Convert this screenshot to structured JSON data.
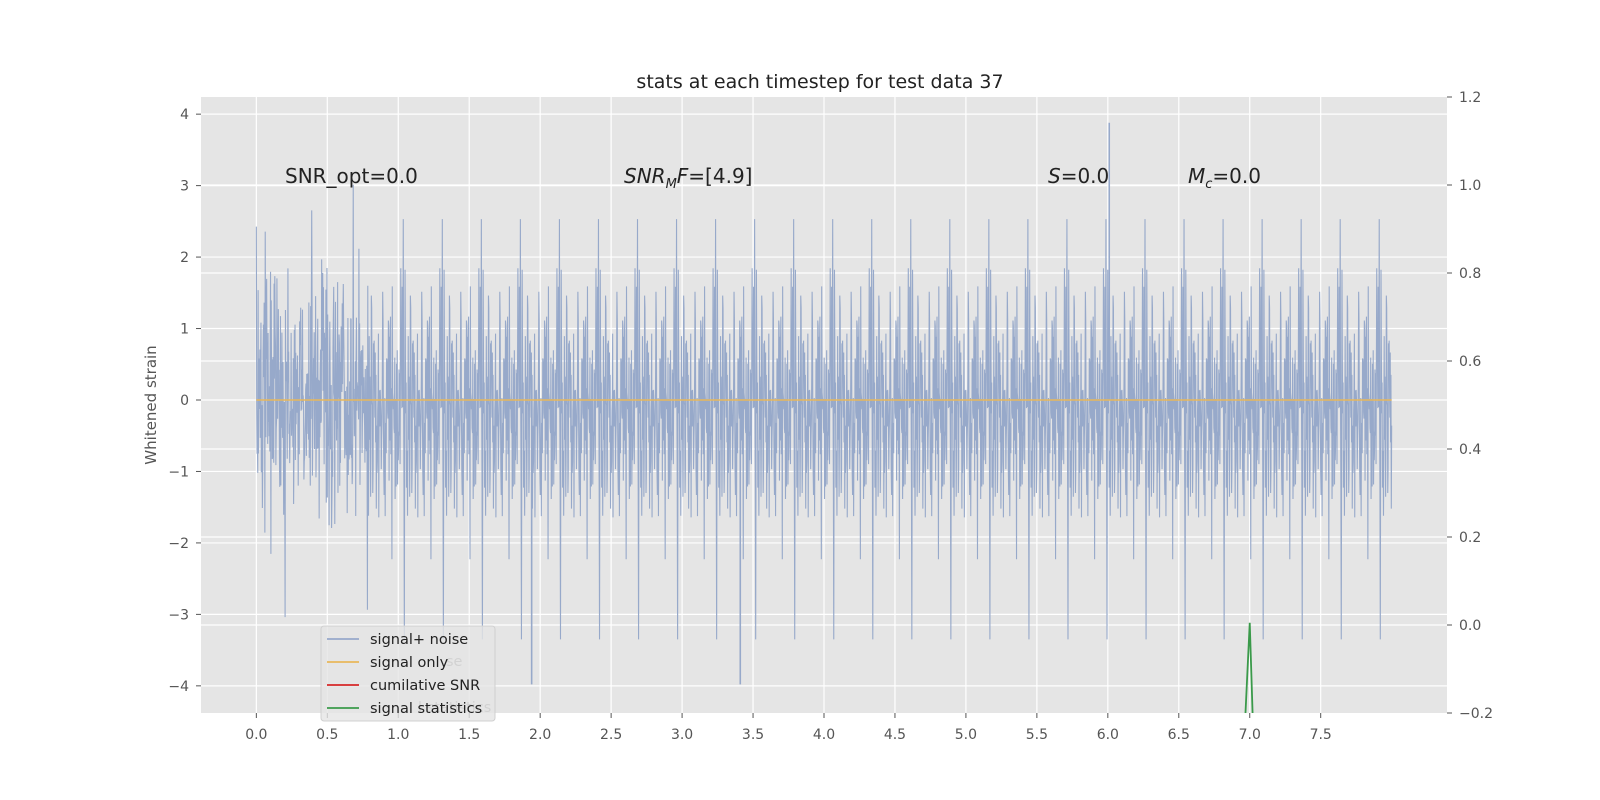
{
  "chart_data": {
    "type": "line",
    "title": "stats at each timestep for test data 37",
    "ylabel": "Whitened strain",
    "xlim": [
      -0.39,
      8.39
    ],
    "ylim": [
      -4.38,
      4.24
    ],
    "ylim_right": [
      -0.2,
      1.2
    ],
    "xticks": [
      "0.0",
      "0.5",
      "1.0",
      "1.5",
      "2.0",
      "2.5",
      "3.0",
      "3.5",
      "4.0",
      "4.5",
      "5.0",
      "5.5",
      "6.0",
      "6.5",
      "7.0",
      "7.5"
    ],
    "yticks": [
      "4",
      "3",
      "2",
      "1",
      "0",
      "−1",
      "−2",
      "−3",
      "−4"
    ],
    "yticks_right": [
      "1.2",
      "1.0",
      "0.8",
      "0.6",
      "0.4",
      "0.2",
      "0.0",
      "−0.2"
    ],
    "grid": true,
    "legend_position": "lower-left",
    "series": [
      {
        "name": "signal+ noise",
        "color": "#97a9ca",
        "x_range": [
          0.0,
          8.0
        ],
        "amplitude_std": 0.95,
        "kind": "noise"
      },
      {
        "name": "signal only",
        "color": "#e8b75a",
        "x": [
          0.0,
          8.0
        ],
        "y": [
          0.0,
          0.0
        ]
      },
      {
        "name": "cumilative SNR",
        "color": "#d62728",
        "x": [],
        "y": []
      },
      {
        "name": "signal statistics",
        "color": "#3a9a4a",
        "axis": "right",
        "x": [
          6.97,
          7.0,
          7.02
        ],
        "y": [
          -0.2,
          0.005,
          -0.2
        ]
      }
    ],
    "ghost_legend": [
      "se",
      "l statistics"
    ],
    "annotations": [
      {
        "id": "snr-opt",
        "text": "SNR_opt=0.0",
        "x": 0.2,
        "y": 3.05
      },
      {
        "id": "snr-mf",
        "base": "SNR",
        "sub": "M",
        "mid": "F",
        "rest": "=[4.9]",
        "x": 2.6,
        "y": 3.05
      },
      {
        "id": "s",
        "base": "S",
        "rest": "=0.0",
        "x": 5.6,
        "y": 3.05
      },
      {
        "id": "mc",
        "base": "M",
        "sub": "c",
        "rest": "=0.0",
        "x": 6.6,
        "y": 3.05
      }
    ],
    "spike_highlights": [
      {
        "x": 1.94,
        "y": -3.98
      },
      {
        "x": 3.41,
        "y": -3.98
      },
      {
        "x": 6.01,
        "y": 3.88
      }
    ]
  }
}
